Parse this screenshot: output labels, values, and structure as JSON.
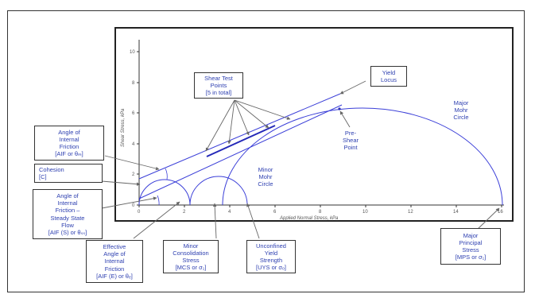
{
  "axes": {
    "xlabel": "Applied Normal Stress, kPa",
    "ylabel": "Shear Stress, kPa",
    "x_ticks": [
      "0",
      "2",
      "4",
      "6",
      "8",
      "10",
      "12",
      "14",
      "16"
    ],
    "y_ticks": [
      "0",
      "2",
      "4",
      "6",
      "8",
      "10"
    ]
  },
  "labels": {
    "shear_points": [
      "Shear Test",
      "Points",
      "[5 in total]"
    ],
    "yield_locus": [
      "Yield",
      "Locus"
    ],
    "major_circle": [
      "Major",
      "Mohr",
      "Circle"
    ],
    "pre_shear": [
      "Pre-",
      "Shear",
      "Point"
    ],
    "minor_circle": [
      "Minor",
      "Mohr",
      "Circle"
    ],
    "angle_internal": [
      "Angle of",
      "Internal",
      "Friction",
      "[AIF or θₘ]"
    ],
    "cohesion": [
      "Cohesion",
      "[C]"
    ],
    "angle_steady": [
      "Angle of",
      "Internal",
      "Friction –",
      "Steady State",
      "Flow",
      "[AIF (S) or θₛₛ]"
    ],
    "effective_angle": [
      "Effective",
      "Angle of",
      "Internal",
      "Friction",
      "[AIF (E) or θₑ]"
    ],
    "mcs": [
      "Minor",
      "Consolidation",
      "Stress",
      "[MCS or σ₁]"
    ],
    "uys": [
      "Unconfined",
      "Yield",
      "Strength",
      "[UYS or σₒ]"
    ],
    "mps": [
      "Major",
      "Principal",
      "Stress",
      "[MPS or σ₁]"
    ]
  },
  "colors": {
    "curve": "#3b3fd8",
    "arrow": "#666666",
    "text": "#2d3fb0"
  }
}
